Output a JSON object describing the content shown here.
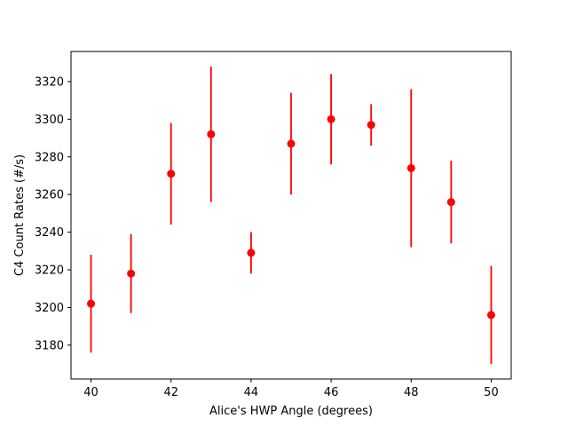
{
  "chart_data": {
    "type": "scatter",
    "title": "",
    "xlabel": "Alice's HWP Angle (degrees)",
    "ylabel": "C4 Count Rates (#/s)",
    "xlim": [
      39.5,
      50.5
    ],
    "ylim": [
      3162,
      3336
    ],
    "xticks": [
      40,
      42,
      44,
      46,
      48,
      50
    ],
    "yticks": [
      3180,
      3200,
      3220,
      3240,
      3260,
      3280,
      3300,
      3320
    ],
    "grid": false,
    "marker_color": "#ff0000",
    "series": [
      {
        "x": [
          40,
          41,
          42,
          43,
          44,
          45,
          46,
          47,
          48,
          49,
          50
        ],
        "y": [
          3202,
          3218,
          3271,
          3292,
          3229,
          3287,
          3300,
          3297,
          3274,
          3256,
          3196
        ],
        "yerr": [
          26,
          21,
          27,
          36,
          11,
          27,
          24,
          11,
          42,
          22,
          26
        ]
      }
    ]
  }
}
